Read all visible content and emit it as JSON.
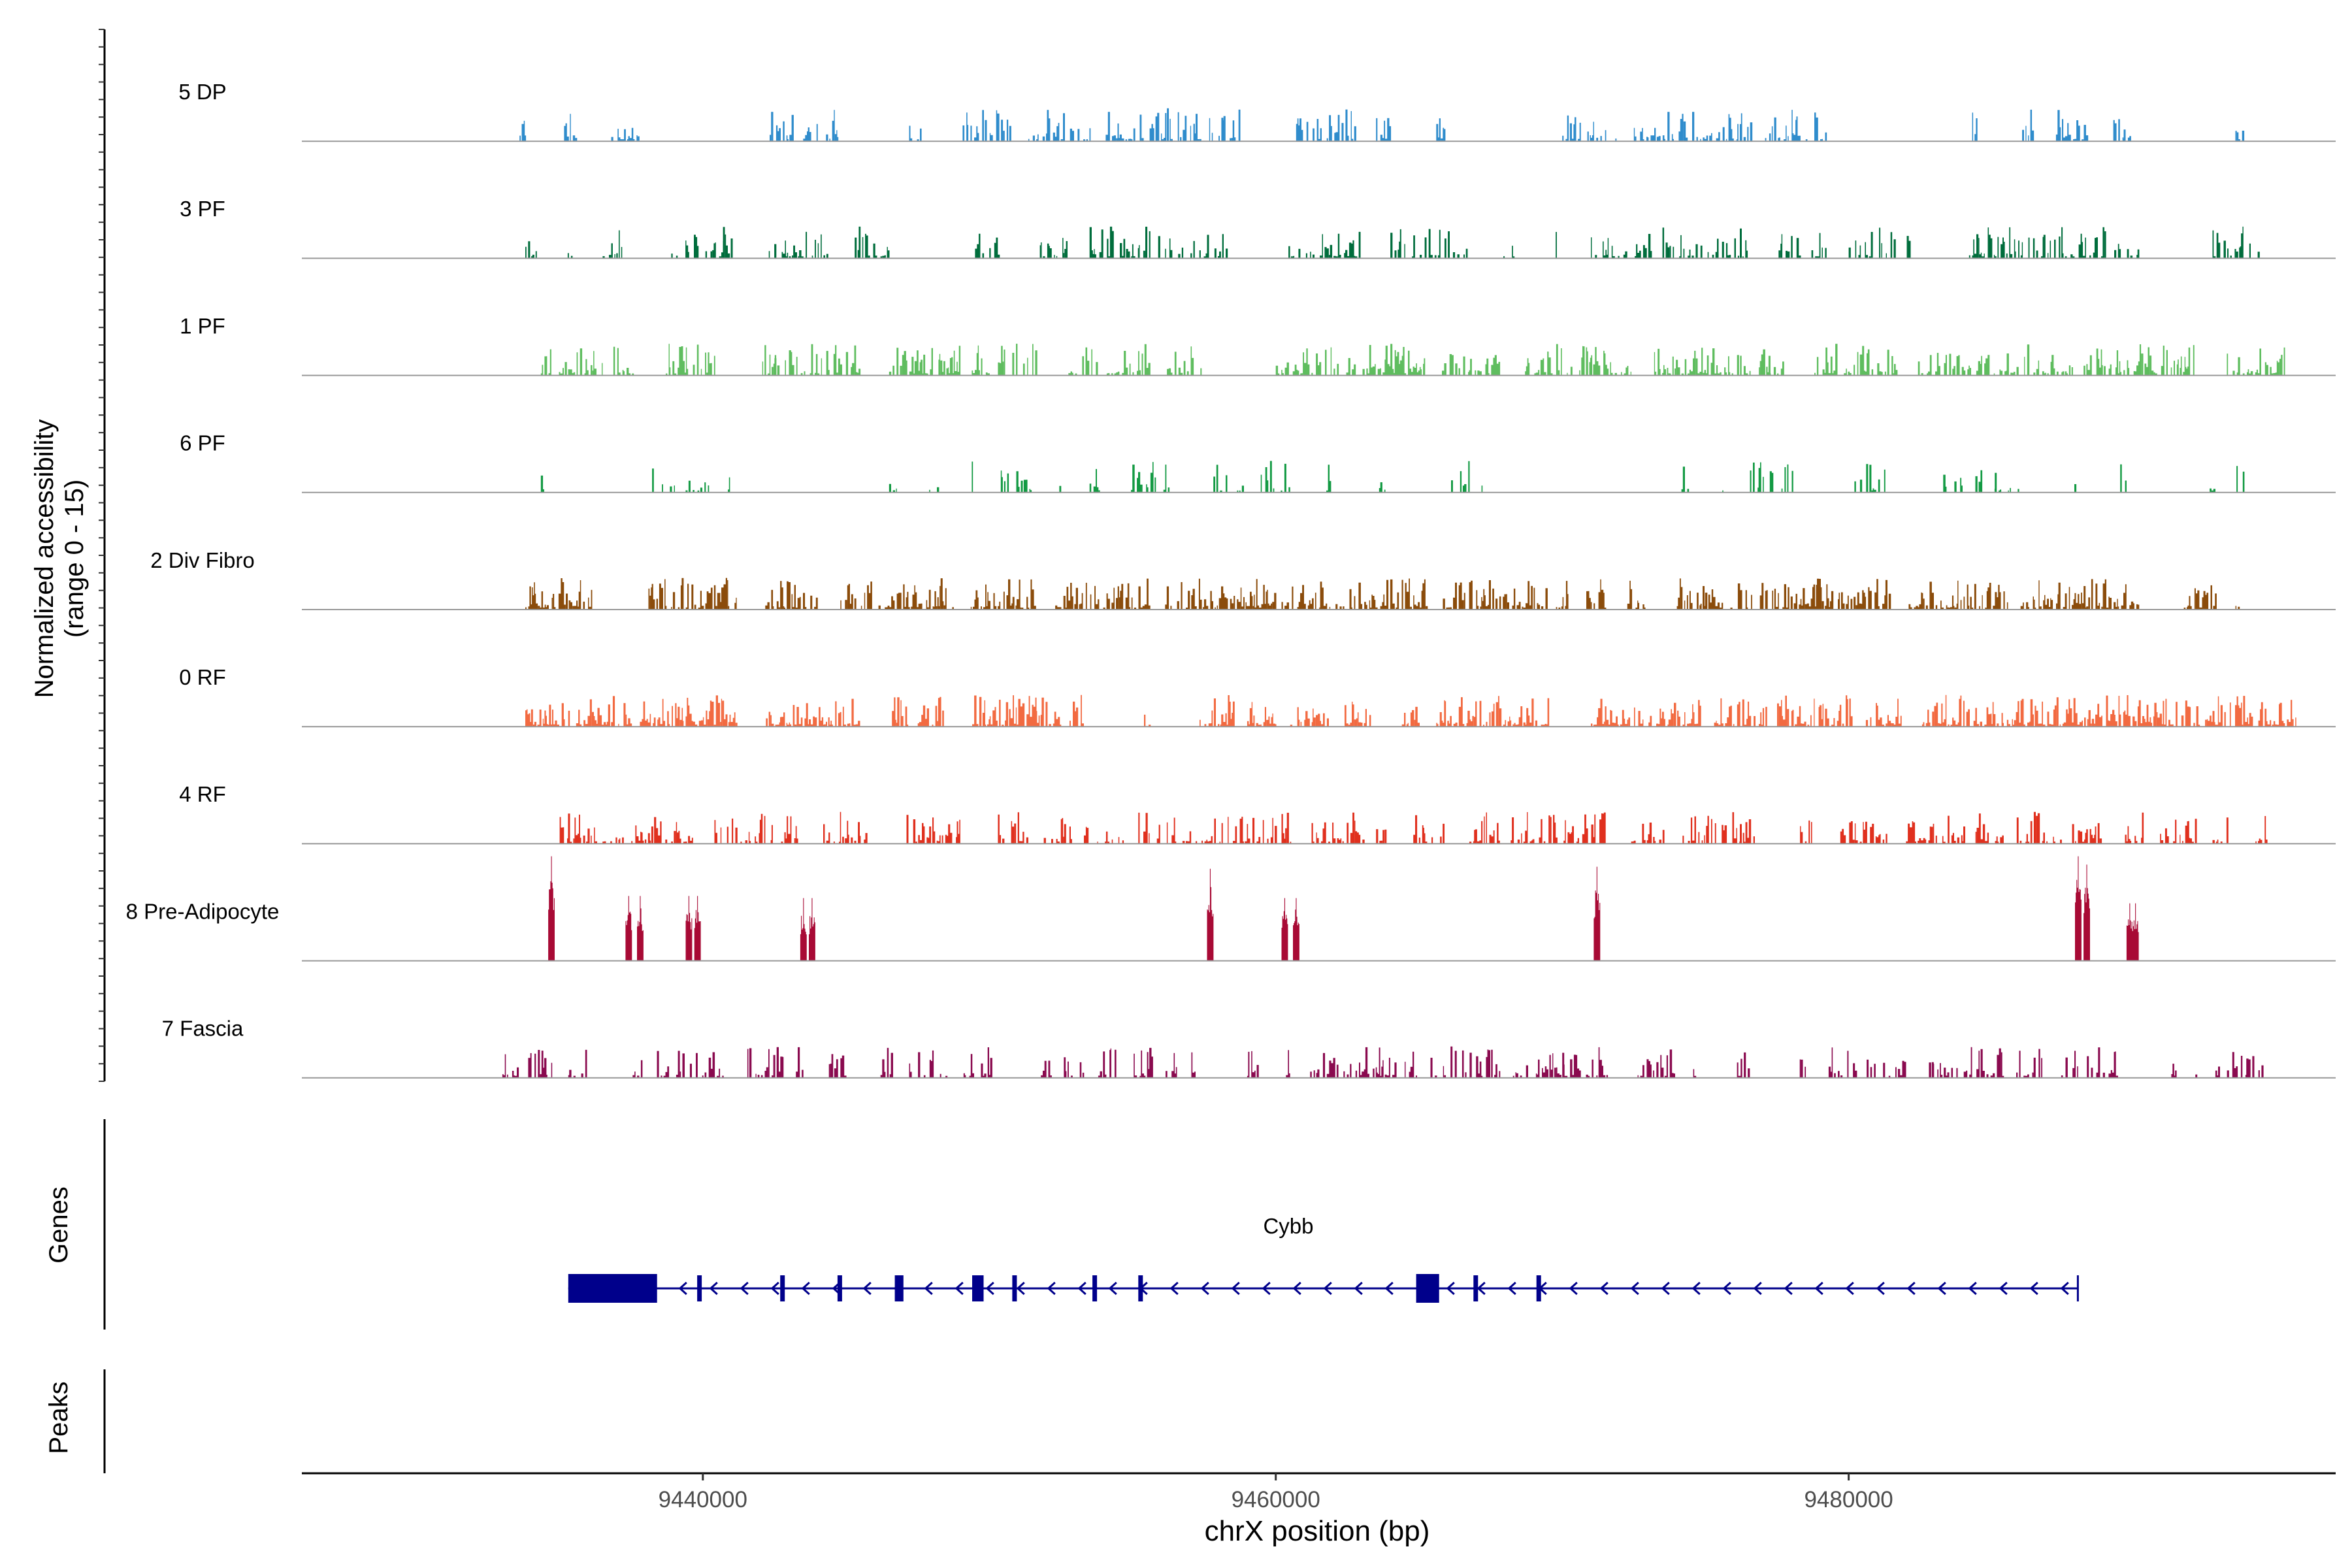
{
  "chart_data": {
    "type": "area",
    "title": "",
    "ylabel": "Normalized accessibility",
    "ylabel_range": "(range 0 - 15)",
    "ylim": [
      0,
      15
    ],
    "xlabel": "chrX position (bp)",
    "xlim": [
      9426000,
      9497000
    ],
    "x_ticks": [
      9440000,
      9460000,
      9480000
    ],
    "x_tick_labels": [
      "9440000",
      "9460000",
      "9480000"
    ],
    "tracks": [
      {
        "name": "5 DP",
        "color": "#2f8ccc",
        "seed": 11,
        "style": "dense",
        "density": 0.55,
        "regions": [
          [
            9433600,
            9433800
          ],
          [
            9435100,
            9435600
          ],
          [
            9436800,
            9437900
          ],
          [
            9442300,
            9443100
          ],
          [
            9443500,
            9444700
          ],
          [
            9447200,
            9447600
          ],
          [
            9449000,
            9450800
          ],
          [
            9451200,
            9453500
          ],
          [
            9454000,
            9458800
          ],
          [
            9460600,
            9462800
          ],
          [
            9463500,
            9464000
          ],
          [
            9465600,
            9465900
          ],
          [
            9470000,
            9472000
          ],
          [
            9472500,
            9476700
          ],
          [
            9477000,
            9478500
          ],
          [
            9478800,
            9479200
          ],
          [
            9484200,
            9484500
          ],
          [
            9485800,
            9486400
          ],
          [
            9487200,
            9488300
          ],
          [
            9489200,
            9489800
          ],
          [
            9493500,
            9494000
          ]
        ],
        "spikes": [
          [
            9456200,
            0.42
          ],
          [
            9457200,
            0.35
          ],
          [
            9458100,
            0.3
          ],
          [
            9465600,
            0.22
          ],
          [
            9475600,
            0.18
          ],
          [
            9489600,
            0.15
          ]
        ]
      },
      {
        "name": "3 PF",
        "color": "#006d3c",
        "seed": 23,
        "style": "dense",
        "density": 0.5,
        "regions": [
          [
            9433800,
            9434200
          ],
          [
            9435100,
            9435400
          ],
          [
            9436500,
            9437300
          ],
          [
            9438800,
            9441000
          ],
          [
            9442300,
            9444500
          ],
          [
            9445300,
            9446500
          ],
          [
            9449500,
            9450300
          ],
          [
            9451700,
            9452900
          ],
          [
            9453500,
            9458400
          ],
          [
            9460400,
            9462900
          ],
          [
            9464000,
            9466700
          ],
          [
            9467800,
            9468500
          ],
          [
            9469700,
            9469900
          ],
          [
            9471000,
            9473200
          ],
          [
            9473500,
            9476600
          ],
          [
            9477500,
            9478300
          ],
          [
            9478700,
            9479200
          ],
          [
            9480000,
            9482200
          ],
          [
            9484200,
            9490100
          ],
          [
            9492700,
            9494600
          ]
        ],
        "spikes": [
          [
            9457600,
            0.3
          ],
          [
            9476200,
            0.38
          ],
          [
            9486800,
            0.3
          ],
          [
            9440700,
            0.22
          ]
        ]
      },
      {
        "name": "1 PF",
        "color": "#5fbd5f",
        "seed": 37,
        "style": "dense",
        "density": 0.6,
        "regions": [
          [
            9434300,
            9436500
          ],
          [
            9436800,
            9437700
          ],
          [
            9438600,
            9440400
          ],
          [
            9442000,
            9445700
          ],
          [
            9446500,
            9450000
          ],
          [
            9450300,
            9451800
          ],
          [
            9452600,
            9455600
          ],
          [
            9456200,
            9457400
          ],
          [
            9460000,
            9465200
          ],
          [
            9465800,
            9467800
          ],
          [
            9468700,
            9472400
          ],
          [
            9473100,
            9478000
          ],
          [
            9478800,
            9481700
          ],
          [
            9482200,
            9487800
          ],
          [
            9488200,
            9492100
          ],
          [
            9493200,
            9495300
          ]
        ],
        "spikes": [
          [
            9461400,
            0.28
          ],
          [
            9442500,
            0.22
          ],
          [
            9447600,
            0.2
          ],
          [
            9477200,
            0.25
          ]
        ]
      },
      {
        "name": "6 PF",
        "color": "#139a43",
        "seed": 41,
        "style": "dense",
        "density": 0.35,
        "regions": [
          [
            9434300,
            9434600
          ],
          [
            9438100,
            9440200
          ],
          [
            9440700,
            9441100
          ],
          [
            9446500,
            9446900
          ],
          [
            9447900,
            9448200
          ],
          [
            9449300,
            9449500
          ],
          [
            9450400,
            9451500
          ],
          [
            9452200,
            9452500
          ],
          [
            9453500,
            9453900
          ],
          [
            9454900,
            9455800
          ],
          [
            9456000,
            9456300
          ],
          [
            9457400,
            9458900
          ],
          [
            9459300,
            9460500
          ],
          [
            9461700,
            9461900
          ],
          [
            9463500,
            9463800
          ],
          [
            9465600,
            9467200
          ],
          [
            9474100,
            9474400
          ],
          [
            9475300,
            9475600
          ],
          [
            9476400,
            9478200
          ],
          [
            9480200,
            9481500
          ],
          [
            9483300,
            9486000
          ],
          [
            9487600,
            9487900
          ],
          [
            9488400,
            9488600
          ],
          [
            9489400,
            9489700
          ],
          [
            9492600,
            9492900
          ],
          [
            9493500,
            9493800
          ]
        ],
        "spikes": [
          [
            9477300,
            0.25
          ],
          [
            9485100,
            0.25
          ],
          [
            9439500,
            0.15
          ],
          [
            9451100,
            0.15
          ]
        ]
      },
      {
        "name": "2 Div Fibro",
        "color": "#8b4c0b",
        "seed": 53,
        "style": "dense",
        "density": 0.65,
        "regions": [
          [
            9433800,
            9436200
          ],
          [
            9438100,
            9441200
          ],
          [
            9442100,
            9444100
          ],
          [
            9444800,
            9448900
          ],
          [
            9449300,
            9451600
          ],
          [
            9452300,
            9455600
          ],
          [
            9456100,
            9460000
          ],
          [
            9460200,
            9465300
          ],
          [
            9465700,
            9470200
          ],
          [
            9470600,
            9471500
          ],
          [
            9472200,
            9473000
          ],
          [
            9474000,
            9476600
          ],
          [
            9476900,
            9481600
          ],
          [
            9482000,
            9485800
          ],
          [
            9486000,
            9490200
          ],
          [
            9491700,
            9492800
          ],
          [
            9493400,
            9493700
          ]
        ],
        "spikes": [
          [
            9439600,
            0.32
          ],
          [
            9474900,
            0.3
          ],
          [
            9488200,
            0.3
          ],
          [
            9461600,
            0.28
          ],
          [
            9447400,
            0.22
          ],
          [
            9480300,
            0.22
          ]
        ]
      },
      {
        "name": "0 RF",
        "color": "#f26a41",
        "seed": 67,
        "style": "dense",
        "density": 0.75,
        "regions": [
          [
            9433800,
            9437500
          ],
          [
            9437800,
            9441200
          ],
          [
            9442200,
            9445500
          ],
          [
            9446600,
            9447200
          ],
          [
            9447500,
            9448400
          ],
          [
            9449400,
            9452600
          ],
          [
            9452800,
            9453300
          ],
          [
            9455400,
            9455600
          ],
          [
            9457200,
            9458500
          ],
          [
            9459000,
            9460000
          ],
          [
            9460500,
            9461800
          ],
          [
            9462400,
            9463300
          ],
          [
            9464400,
            9465000
          ],
          [
            9465600,
            9469500
          ],
          [
            9471000,
            9474800
          ],
          [
            9475300,
            9477100
          ],
          [
            9477500,
            9480100
          ],
          [
            9480600,
            9482000
          ],
          [
            9482500,
            9483900
          ],
          [
            9484000,
            9494100
          ],
          [
            9494300,
            9495600
          ]
        ],
        "spikes": [
          [
            9443600,
            0.3
          ],
          [
            9434000,
            0.22
          ],
          [
            9451600,
            0.2
          ],
          [
            9478000,
            0.2
          ],
          [
            9492700,
            0.2
          ]
        ]
      },
      {
        "name": "4 RF",
        "color": "#e0301e",
        "seed": 79,
        "style": "dense",
        "density": 0.55,
        "regions": [
          [
            9435000,
            9437300
          ],
          [
            9437500,
            9439800
          ],
          [
            9440300,
            9442400
          ],
          [
            9442700,
            9443300
          ],
          [
            9444200,
            9445700
          ],
          [
            9447000,
            9449000
          ],
          [
            9450300,
            9451300
          ],
          [
            9451900,
            9452900
          ],
          [
            9453300,
            9454700
          ],
          [
            9455200,
            9457000
          ],
          [
            9457200,
            9460500
          ],
          [
            9461100,
            9463100
          ],
          [
            9463500,
            9464000
          ],
          [
            9464800,
            9466000
          ],
          [
            9466700,
            9467900
          ],
          [
            9468200,
            9471500
          ],
          [
            9472300,
            9473600
          ],
          [
            9474200,
            9476700
          ],
          [
            9478300,
            9478700
          ],
          [
            9479600,
            9481400
          ],
          [
            9482000,
            9485500
          ],
          [
            9485800,
            9487400
          ],
          [
            9487900,
            9488900
          ],
          [
            9489600,
            9490300
          ],
          [
            9490800,
            9492100
          ],
          [
            9492700,
            9493200
          ],
          [
            9494200,
            9494600
          ]
        ],
        "spikes": [
          [
            9438200,
            0.22
          ],
          [
            9447900,
            0.22
          ],
          [
            9476200,
            0.25
          ],
          [
            9487800,
            0.25
          ],
          [
            9463800,
            0.18
          ],
          [
            9484000,
            0.22
          ]
        ]
      },
      {
        "name": "8 Pre-Adipocyte",
        "color": "#a80a35",
        "seed": 83,
        "style": "peaks",
        "peaks": [
          [
            9434700,
            1.0
          ],
          [
            9437400,
            0.62
          ],
          [
            9437800,
            0.62
          ],
          [
            9439500,
            0.62
          ],
          [
            9439800,
            0.62
          ],
          [
            9443500,
            0.6
          ],
          [
            9443800,
            0.6
          ],
          [
            9457700,
            0.88
          ],
          [
            9460300,
            0.6
          ],
          [
            9460700,
            0.6
          ],
          [
            9471200,
            0.9
          ],
          [
            9488000,
            1.0
          ],
          [
            9488300,
            0.92
          ],
          [
            9489800,
            0.55
          ],
          [
            9490000,
            0.55
          ]
        ]
      },
      {
        "name": "7 Fascia",
        "color": "#8a0a4f",
        "seed": 97,
        "style": "dense",
        "density": 0.55,
        "regions": [
          [
            9433000,
            9433600
          ],
          [
            9433900,
            9434900
          ],
          [
            9435300,
            9435900
          ],
          [
            9437500,
            9437900
          ],
          [
            9438300,
            9440700
          ],
          [
            9441300,
            9442800
          ],
          [
            9443000,
            9443500
          ],
          [
            9444400,
            9445200
          ],
          [
            9446200,
            9448500
          ],
          [
            9449100,
            9450100
          ],
          [
            9451800,
            9452200
          ],
          [
            9452600,
            9453300
          ],
          [
            9453800,
            9454400
          ],
          [
            9455000,
            9455700
          ],
          [
            9456100,
            9456600
          ],
          [
            9457000,
            9457300
          ],
          [
            9459000,
            9459400
          ],
          [
            9460300,
            9460500
          ],
          [
            9461200,
            9464200
          ],
          [
            9464500,
            9464900
          ],
          [
            9465400,
            9467900
          ],
          [
            9468200,
            9472000
          ],
          [
            9472600,
            9474000
          ],
          [
            9474500,
            9474700
          ],
          [
            9476100,
            9476600
          ],
          [
            9478100,
            9478500
          ],
          [
            9479300,
            9480900
          ],
          [
            9481200,
            9482000
          ],
          [
            9482800,
            9485400
          ],
          [
            9485800,
            9487100
          ],
          [
            9487300,
            9489400
          ],
          [
            9491200,
            9491600
          ],
          [
            9492100,
            9492400
          ],
          [
            9492800,
            9494500
          ]
        ],
        "spikes": [
          [
            9466100,
            0.4
          ],
          [
            9470000,
            0.32
          ],
          [
            9444800,
            0.25
          ],
          [
            9482900,
            0.2
          ]
        ]
      }
    ],
    "genes": {
      "label": "Genes",
      "gene": "Cybb",
      "color": "#00008b",
      "strand": "-",
      "start": 9435300,
      "end": 9488000,
      "exons": [
        [
          9435300,
          9438400
        ],
        [
          9439800,
          9439900
        ],
        [
          9442700,
          9442850
        ],
        [
          9444700,
          9444850
        ],
        [
          9446700,
          9447000
        ],
        [
          9449400,
          9449800
        ],
        [
          9450800,
          9450900
        ],
        [
          9453600,
          9453750
        ],
        [
          9455200,
          9455300
        ],
        [
          9464900,
          9465700
        ],
        [
          9466900,
          9467000
        ],
        [
          9469100,
          9469200
        ]
      ]
    },
    "peaks_label": "Peaks"
  }
}
